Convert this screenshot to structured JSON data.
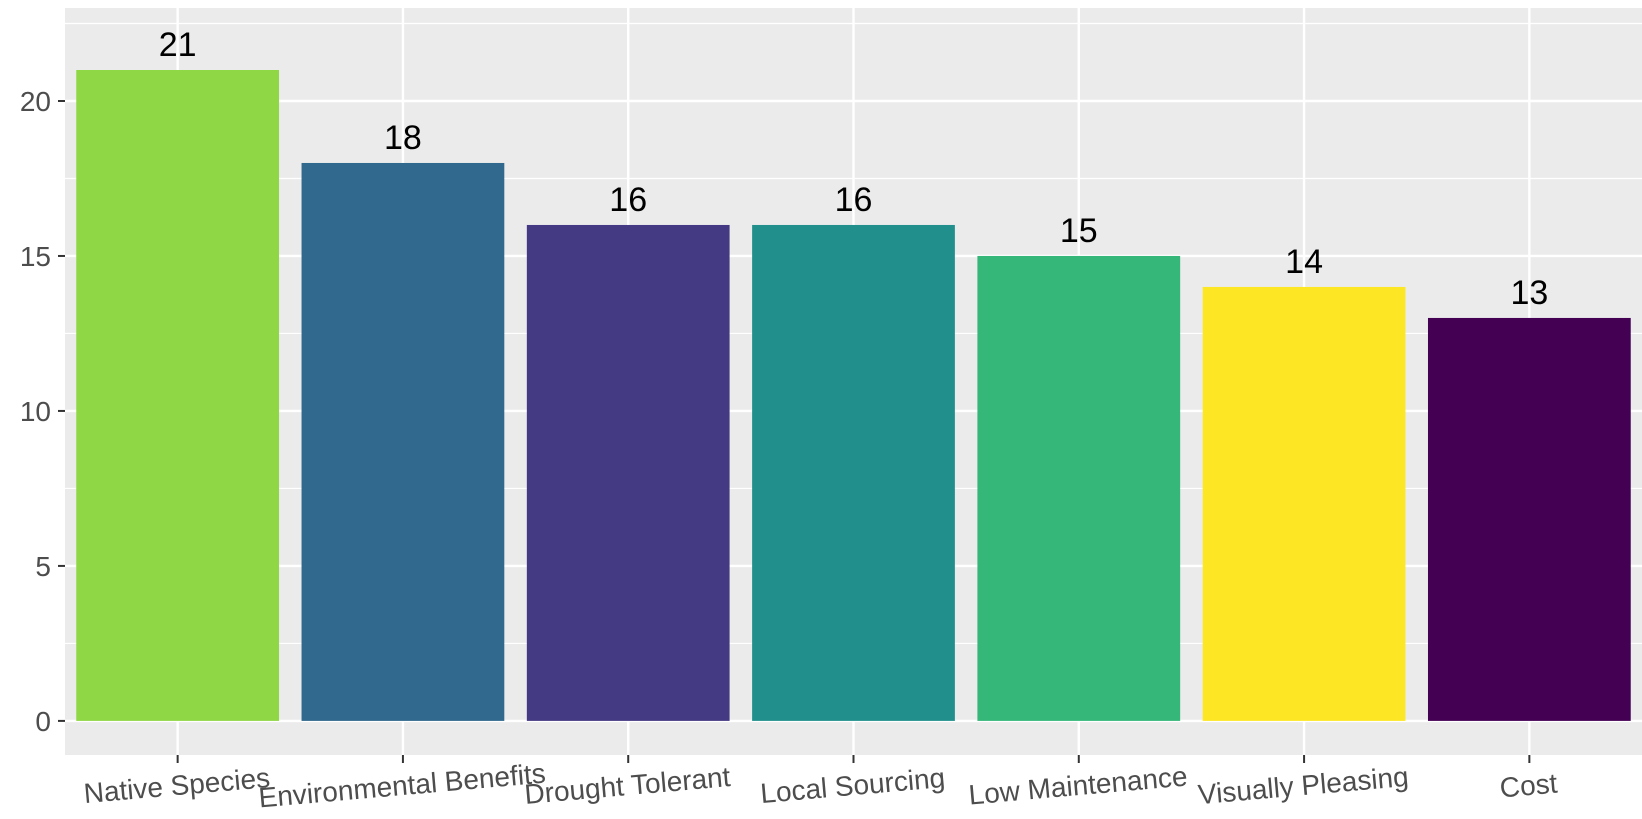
{
  "chart_data": {
    "type": "bar",
    "title": "",
    "xlabel": "",
    "ylabel": "",
    "categories": [
      "Native Species",
      "Environmental Benefits",
      "Drought Tolerant",
      "Local Sourcing",
      "Low Maintenance",
      "Visually Pleasing",
      "Cost"
    ],
    "values": [
      21,
      18,
      16,
      16,
      15,
      14,
      13
    ],
    "data_labels": [
      "21",
      "18",
      "16",
      "16",
      "15",
      "14",
      "13"
    ],
    "bar_colors": [
      "#8FD744",
      "#31688E",
      "#443A83",
      "#21908C",
      "#35B779",
      "#FDE725",
      "#440154"
    ],
    "ylim": [
      -1.1,
      23
    ],
    "yticks": [
      0,
      5,
      10,
      15,
      20
    ],
    "ytick_labels": [
      "0",
      "5",
      "10",
      "15",
      "20"
    ],
    "grid": true,
    "legend": "none",
    "panel_background": "#EBEBEB",
    "grid_color": "#FFFFFF"
  }
}
